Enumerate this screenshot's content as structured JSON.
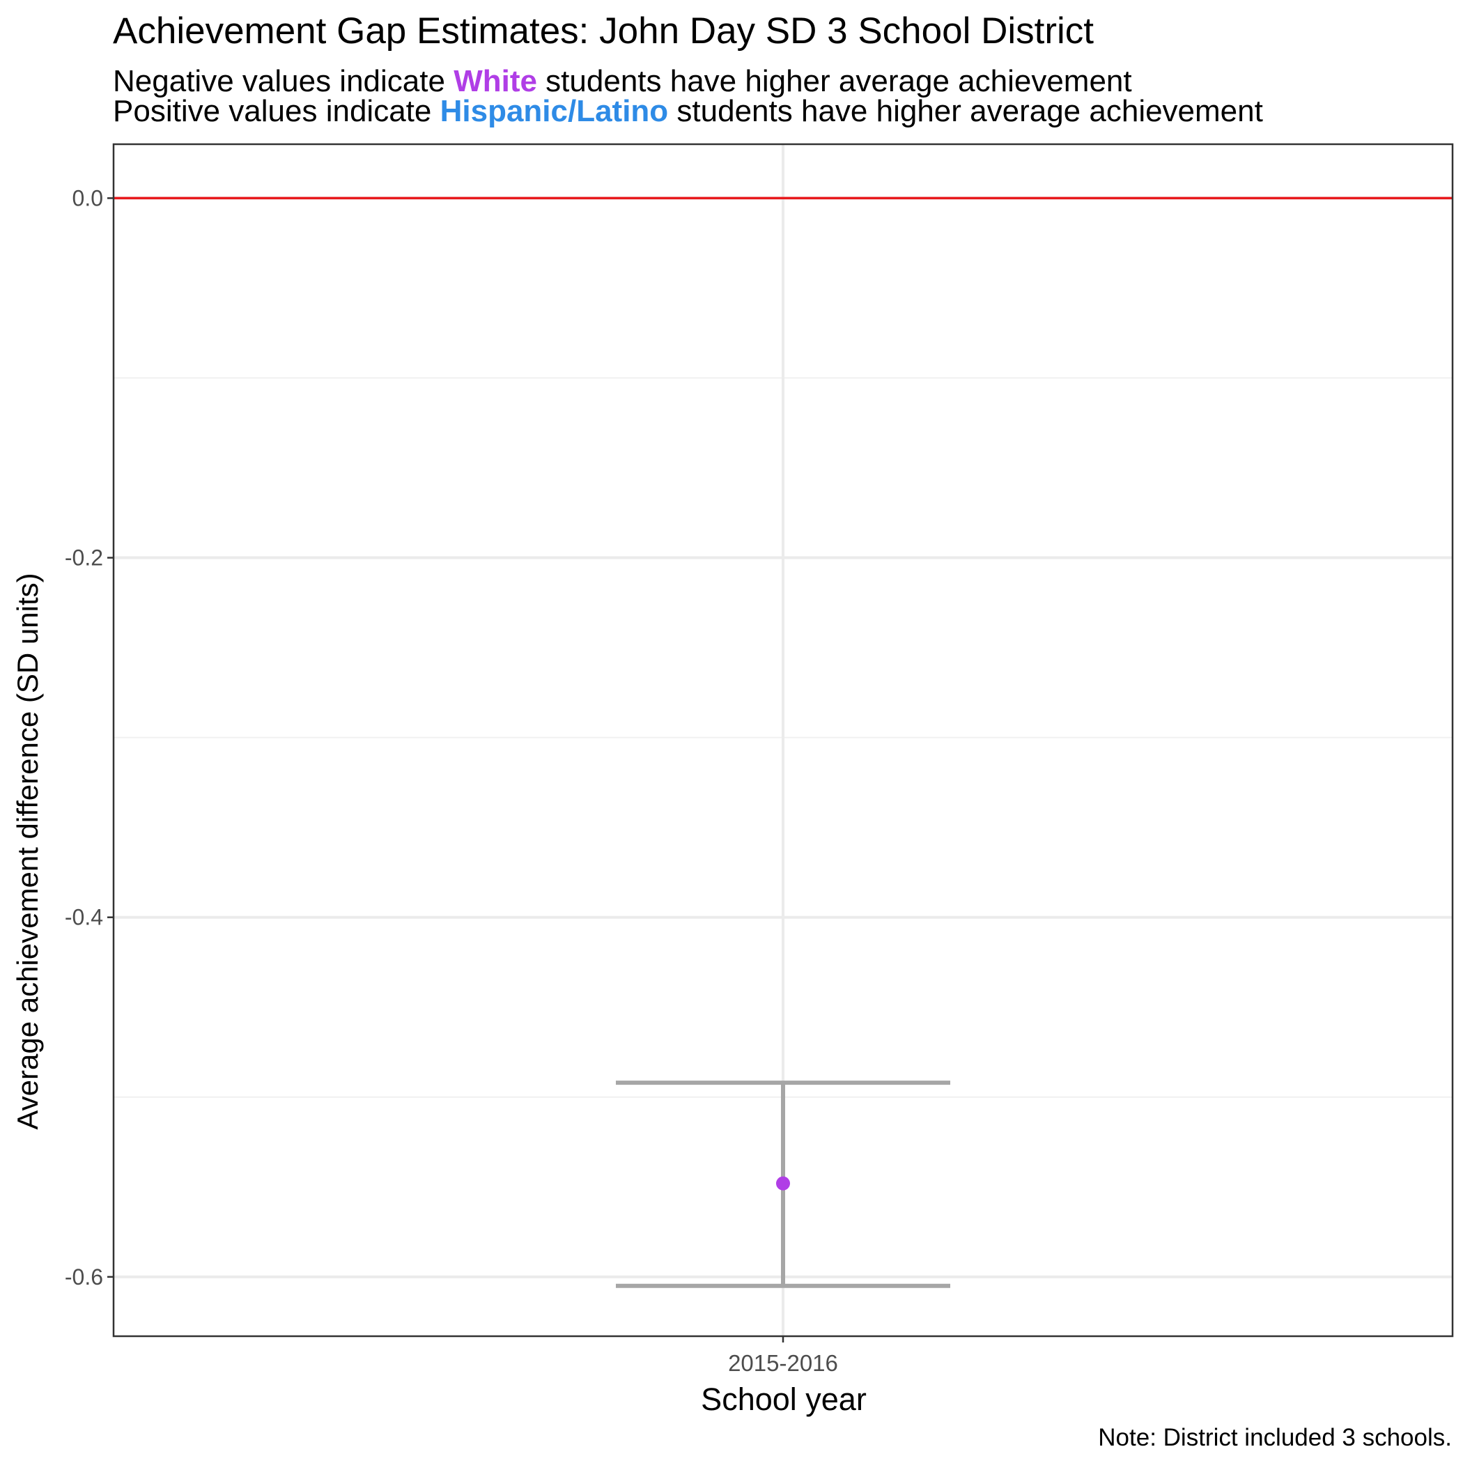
{
  "chart_data": {
    "type": "scatter",
    "title": "Achievement Gap Estimates: John Day SD 3 School District",
    "subtitle": {
      "line1": {
        "prefix": "Negative values indicate ",
        "group": "White",
        "suffix": "  students have higher average achievement"
      },
      "line2": {
        "prefix": "Positive values indicate  ",
        "group": "Hispanic/Latino",
        "suffix": "  students have higher average achievement"
      }
    },
    "xlabel": "School year",
    "ylabel": "Average achievement difference (SD units)",
    "caption": "Note: District included 3 schools.",
    "categories": [
      "2015-2016"
    ],
    "points": [
      {
        "x": "2015-2016",
        "y": -0.548,
        "ymin": -0.605,
        "ymax": -0.492
      }
    ],
    "reference_line": {
      "y": 0.0,
      "color": "#e8191c"
    },
    "ylim": [
      -0.633,
      0.03
    ],
    "yticks": [
      0.0,
      -0.2,
      -0.4,
      -0.6
    ],
    "ytick_labels": [
      "0.0",
      "-0.2",
      "-0.4",
      "-0.6"
    ],
    "grid": true,
    "colors": {
      "point": "#b03ee6",
      "errorbar": "#a6a6a6",
      "white_group": "#b03ee6",
      "hispanic_group": "#2e8be6"
    }
  }
}
